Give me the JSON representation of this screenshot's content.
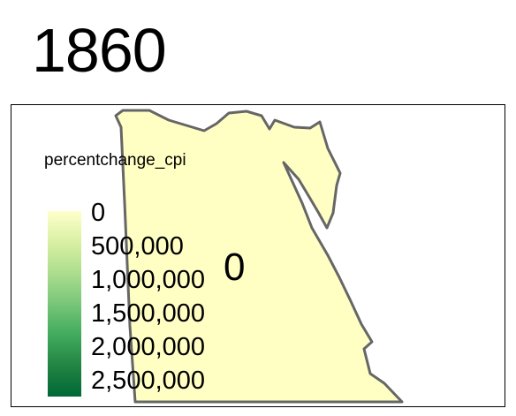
{
  "title": "1860",
  "map": {
    "region_value_label": "0",
    "fill_color": "#ffffc4",
    "border_color": "#666666"
  },
  "legend": {
    "title": "percentchange_cpi",
    "labels": [
      "0",
      "500,000",
      "1,000,000",
      "1,500,000",
      "2,000,000",
      "2,500,000"
    ],
    "colors": [
      "#ffffcc",
      "#d9f0a3",
      "#addd8e",
      "#78c679",
      "#41ab5d",
      "#238443",
      "#006837"
    ]
  }
}
